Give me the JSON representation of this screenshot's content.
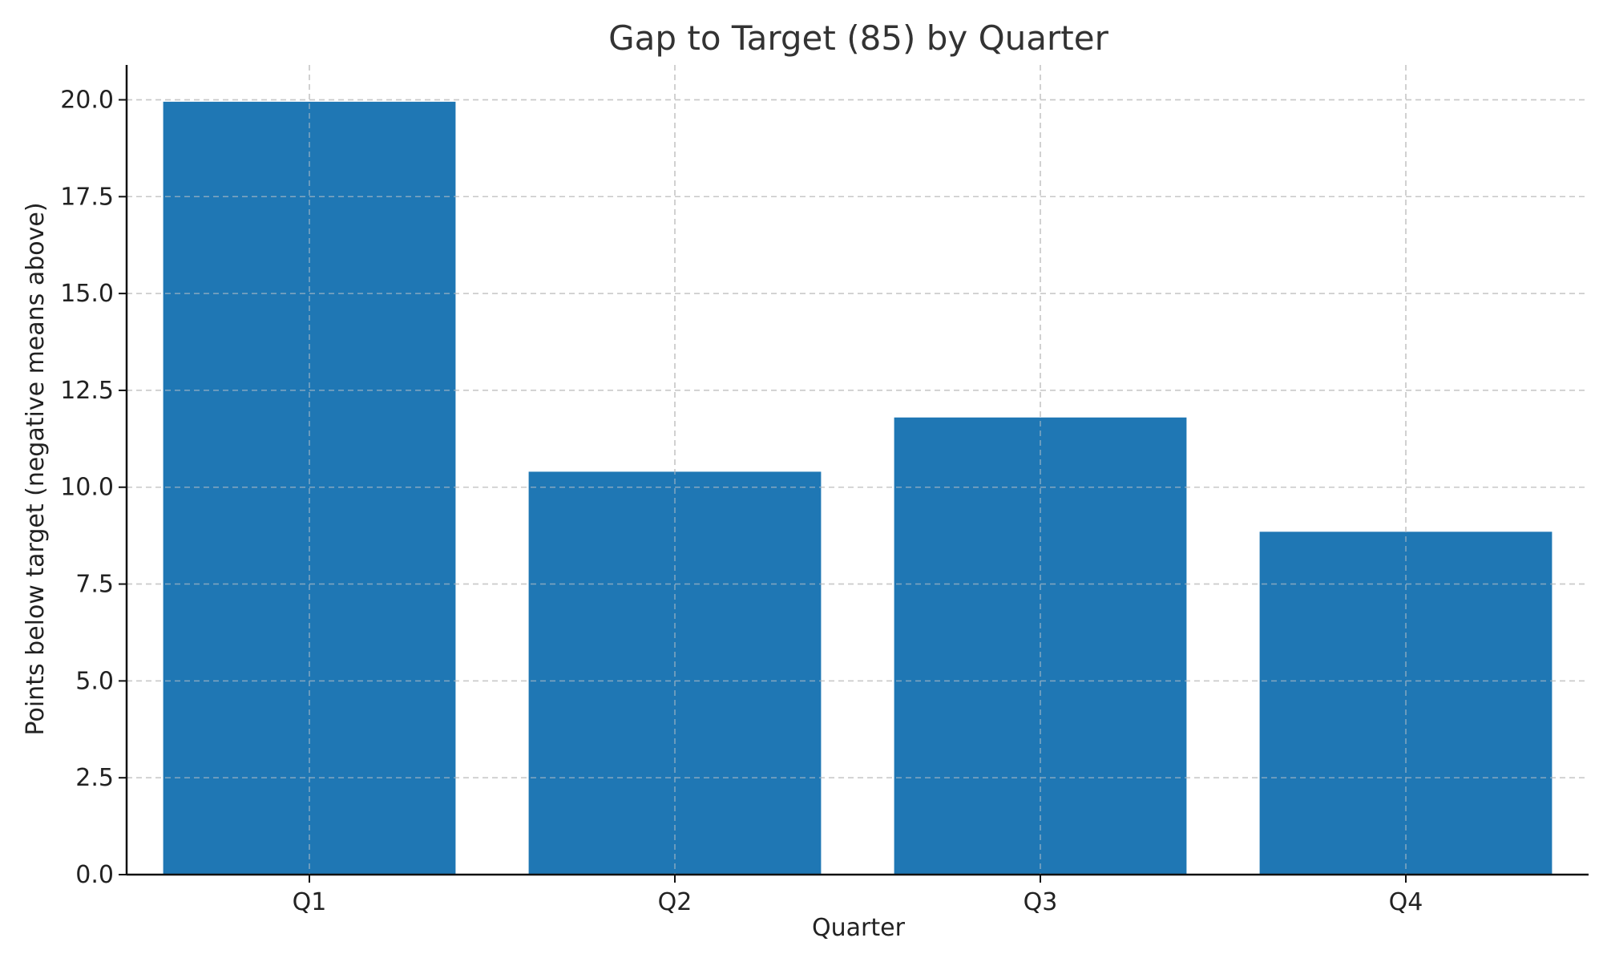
{
  "chart_data": {
    "type": "bar",
    "title": "Gap to Target (85) by Quarter",
    "xlabel": "Quarter",
    "ylabel": "Points below target (negative means above)",
    "categories": [
      "Q1",
      "Q2",
      "Q3",
      "Q4"
    ],
    "values": [
      19.95,
      10.4,
      11.8,
      8.85
    ],
    "ylim": [
      0,
      20.9
    ],
    "yticks": [
      "0.0",
      "2.5",
      "5.0",
      "7.5",
      "10.0",
      "12.5",
      "15.0",
      "17.5",
      "20.0"
    ],
    "grid": true,
    "colors": {
      "bar": "#1f77b4"
    }
  }
}
